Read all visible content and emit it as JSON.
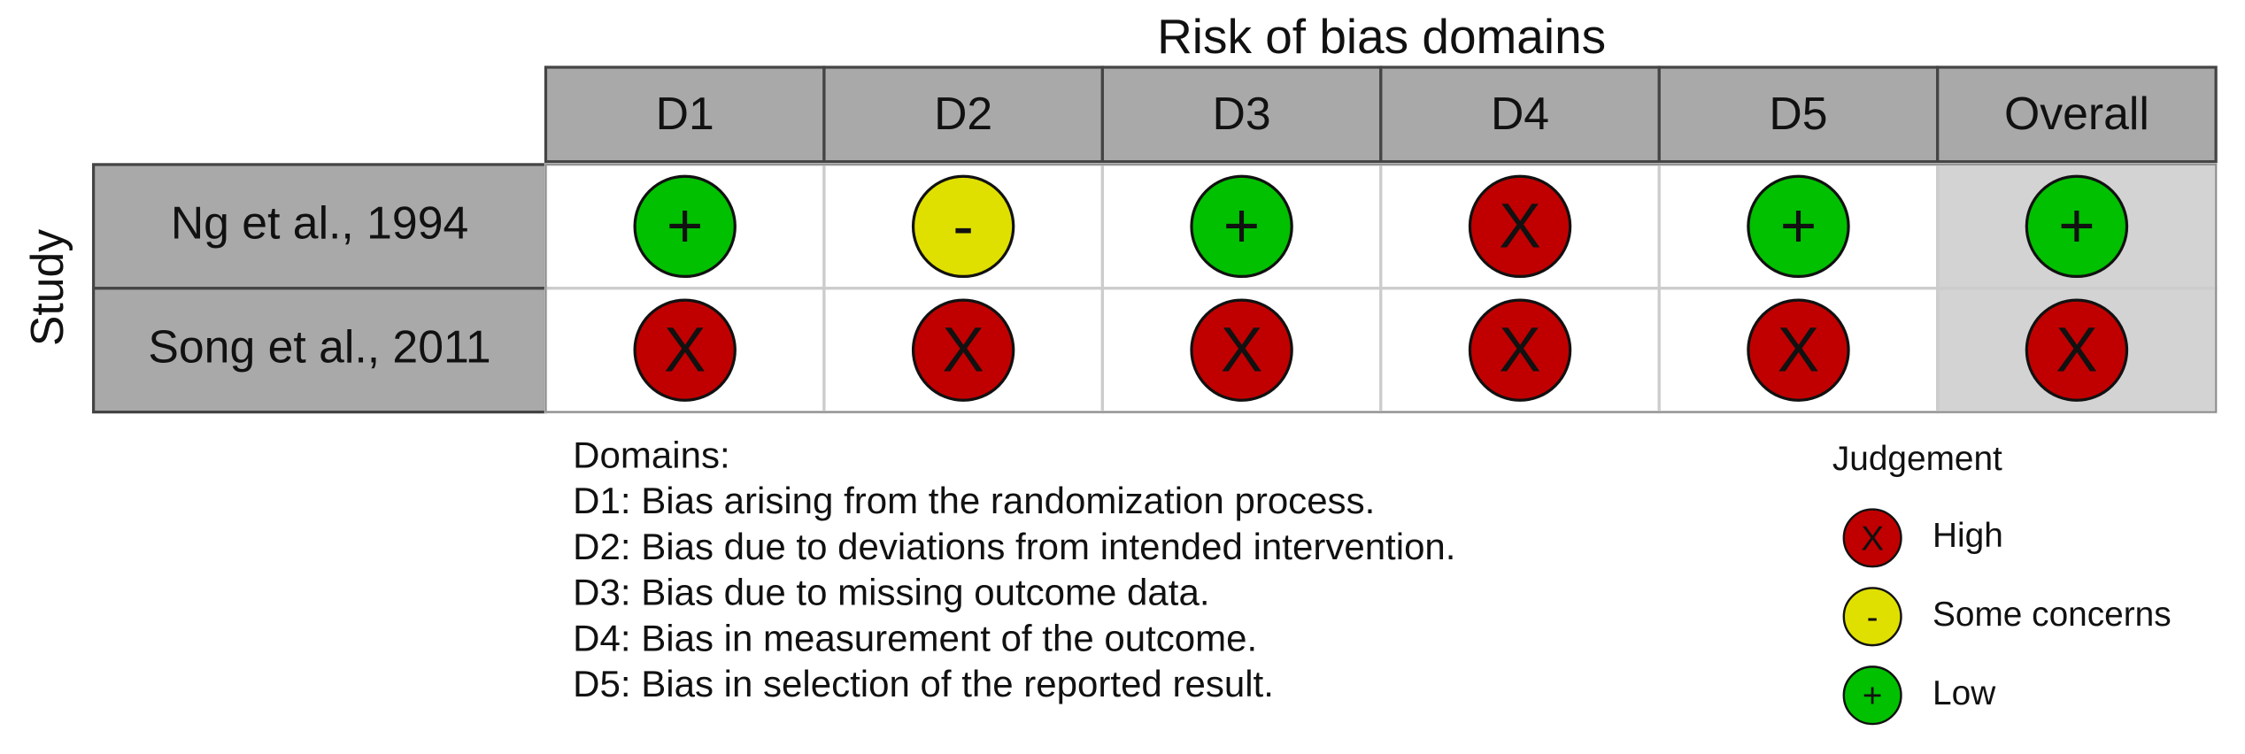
{
  "title": "Risk of bias domains",
  "y_label": "Study",
  "columns": [
    "D1",
    "D2",
    "D3",
    "D4",
    "D5",
    "Overall"
  ],
  "rows": [
    {
      "study": "Ng et al., 1994",
      "judgements": [
        "+",
        "-",
        "+",
        "X",
        "+",
        "+"
      ]
    },
    {
      "study": "Song et al., 2011",
      "judgements": [
        "X",
        "X",
        "X",
        "X",
        "X",
        "X"
      ]
    }
  ],
  "domains": {
    "heading": "Domains:",
    "lines": [
      "D1: Bias arising from the randomization process.",
      "D2: Bias due to deviations from intended intervention.",
      "D3: Bias due to missing outcome data.",
      "D4: Bias in measurement of the outcome.",
      "D5: Bias in selection of the reported result."
    ]
  },
  "legend": {
    "title": "Judgement",
    "items": [
      {
        "symbol": "X",
        "label": "High",
        "color": "#c00000"
      },
      {
        "symbol": "-",
        "label": "Some concerns",
        "color": "#e0e000"
      },
      {
        "symbol": "+",
        "label": "Low",
        "color": "#00c000"
      }
    ]
  }
}
